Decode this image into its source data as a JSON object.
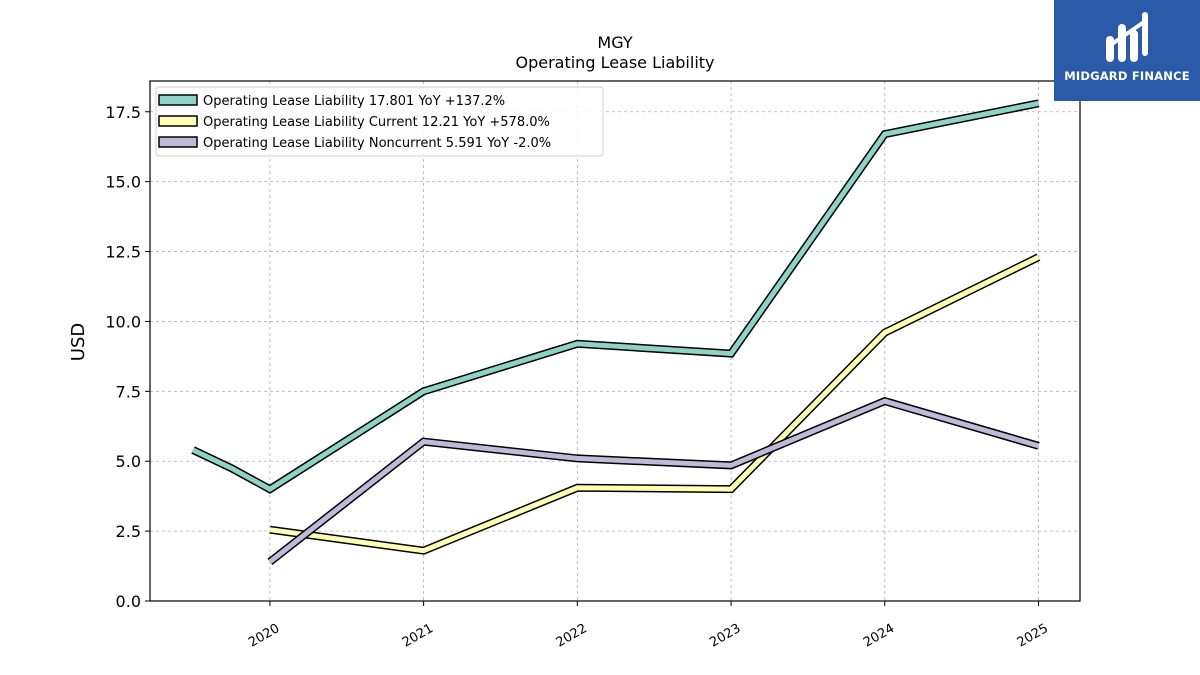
{
  "chart_data": {
    "type": "line",
    "title": "MGY",
    "subtitle": "Operating Lease Liability",
    "xlabel": "",
    "ylabel": "USD",
    "x_ticks": [
      "2020",
      "2021",
      "2022",
      "2023",
      "2024",
      "2025"
    ],
    "y_ticks": [
      "0.0",
      "2.5",
      "5.0",
      "7.5",
      "10.0",
      "12.5",
      "15.0",
      "17.5"
    ],
    "xlim": [
      2019.22,
      2025.27
    ],
    "ylim": [
      0,
      18.6
    ],
    "grid": true,
    "legend_position": "top-left",
    "series": [
      {
        "name": "Operating Lease Liability",
        "legend": "Operating Lease Liability  17.801 YoY +137.2%",
        "color": "#8dd3c7",
        "points": [
          [
            2019.5,
            5.4
          ],
          [
            2019.75,
            4.75
          ],
          [
            2020.0,
            4.0
          ],
          [
            2021.0,
            7.5
          ],
          [
            2022.0,
            9.2
          ],
          [
            2023.0,
            8.85
          ],
          [
            2024.0,
            16.7
          ],
          [
            2025.0,
            17.8
          ]
        ]
      },
      {
        "name": "Operating Lease Liability Current",
        "legend": "Operating Lease Liability Current  12.21 YoY +578.0%",
        "color": "#ffffb3",
        "points": [
          [
            2020.0,
            2.55
          ],
          [
            2021.0,
            1.8
          ],
          [
            2022.0,
            4.05
          ],
          [
            2023.0,
            4.0
          ],
          [
            2024.0,
            9.6
          ],
          [
            2025.0,
            12.3
          ]
        ]
      },
      {
        "name": "Operating Lease Liability Noncurrent",
        "legend": "Operating Lease Liability Noncurrent  5.591 YoY -2.0%",
        "color": "#bebada",
        "points": [
          [
            2020.0,
            1.4
          ],
          [
            2021.0,
            5.7
          ],
          [
            2022.0,
            5.1
          ],
          [
            2023.0,
            4.85
          ],
          [
            2024.0,
            7.15
          ],
          [
            2025.0,
            5.55
          ]
        ]
      }
    ]
  },
  "logo": {
    "text": "MIDGARD FINANCE",
    "background": "#2b5aa8"
  }
}
